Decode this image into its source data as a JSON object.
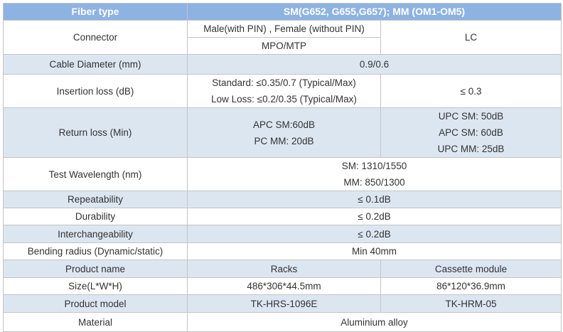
{
  "header": {
    "label": "Fiber type",
    "value": "SM(G652, G655,G657); MM (OM1-OM5)"
  },
  "rows": {
    "connector": {
      "label": "Connector",
      "v1a": "Male(with PIN) , Female (without PIN)",
      "v1b": "MPO/MTP",
      "v2": "LC"
    },
    "cable_diameter": {
      "label": "Cable Diameter (mm)",
      "value": "0.9/0.6"
    },
    "insertion_loss": {
      "label": "Insertion loss (dB)",
      "v1": [
        "Standard: ≤0.35/0.7 (Typical/Max)",
        "Low Loss: ≤0.2/0.35 (Typical/Max)"
      ],
      "v2": "≤ 0.3"
    },
    "return_loss": {
      "label": "Return loss (Min)",
      "v1": [
        "APC SM:60dB",
        "PC MM: 20dB"
      ],
      "v2": [
        "UPC SM: 50dB",
        "APC SM: 60dB",
        "UPC MM: 25dB"
      ]
    },
    "test_wavelength": {
      "label": "Test Wavelength (nm)",
      "value": [
        "SM: 1310/1550",
        "MM: 850/1300"
      ]
    },
    "repeatability": {
      "label": "Repeatability",
      "value": "≤ 0.1dB"
    },
    "durability": {
      "label": "Durability",
      "value": "≤ 0.2dB"
    },
    "interchangeability": {
      "label": "Interchangeability",
      "value": "≤ 0.2dB"
    },
    "bending_radius": {
      "label": "Bending radius (Dynamic/static)",
      "value": "Min 40mm"
    },
    "product_name": {
      "label": "Product name",
      "v1": "Racks",
      "v2": "Cassette module"
    },
    "size": {
      "label": "Size(L*W*H)",
      "v1": "486*306*44.5mm",
      "v2": "86*120*36.9mm"
    },
    "product_model": {
      "label": "Product model",
      "v1": "TK-HRS-1096E",
      "v2": "TK-HRM-05"
    },
    "material": {
      "label": "Material",
      "value": "Aluminium alloy"
    }
  },
  "colors": {
    "header_bg": "#8db3e2",
    "shaded_row_bg": "#dce6f1",
    "border": "#c4c4c4"
  }
}
